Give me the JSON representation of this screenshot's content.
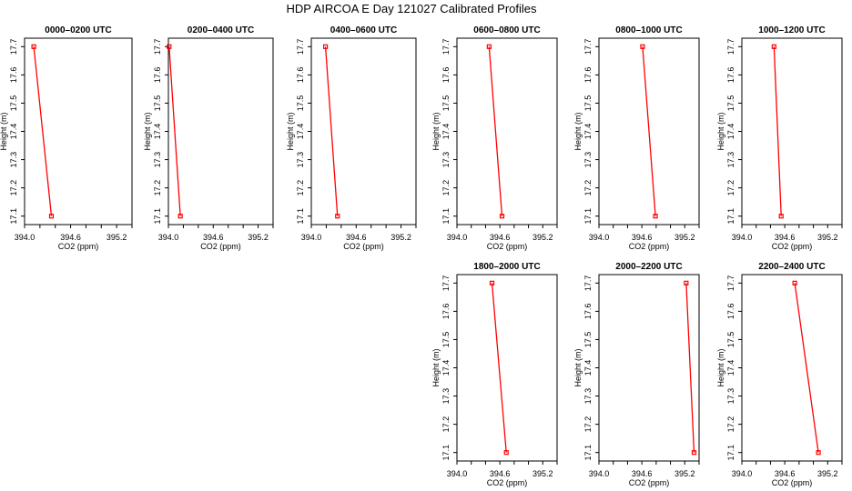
{
  "figure": {
    "title": "HDP AIRCOA E  Day 121027  Calibrated Profiles"
  },
  "chart_data": [
    {
      "type": "line",
      "title": "0000–0200 UTC",
      "xlabel": "CO2 (ppm)",
      "ylabel": "Height (m)",
      "xlim": [
        394.0,
        395.4
      ],
      "ylim": [
        17.07,
        17.73
      ],
      "xticks": [
        "394.0",
        "394.6",
        "395.2"
      ],
      "yticks": [
        "17.1",
        "17.2",
        "17.3",
        "17.4",
        "17.5",
        "17.6",
        "17.7"
      ],
      "series": [
        {
          "color": "#ff0000",
          "x": [
            394.35,
            394.12
          ],
          "y": [
            17.1,
            17.7
          ]
        }
      ]
    },
    {
      "type": "line",
      "title": "0200–0400 UTC",
      "xlabel": "CO2 (ppm)",
      "ylabel": "Height (m)",
      "xlim": [
        394.0,
        395.4
      ],
      "ylim": [
        17.07,
        17.73
      ],
      "xticks": [
        "394.0",
        "394.6",
        "395.2"
      ],
      "yticks": [
        "17.1",
        "17.2",
        "17.3",
        "17.4",
        "17.5",
        "17.6",
        "17.7"
      ],
      "series": [
        {
          "color": "#ff0000",
          "x": [
            394.16,
            394.01
          ],
          "y": [
            17.1,
            17.7
          ]
        }
      ]
    },
    {
      "type": "line",
      "title": "0400–0600 UTC",
      "xlabel": "CO2 (ppm)",
      "ylabel": "Height (m)",
      "xlim": [
        394.0,
        395.4
      ],
      "ylim": [
        17.07,
        17.73
      ],
      "xticks": [
        "394.0",
        "394.6",
        "395.2"
      ],
      "yticks": [
        "17.1",
        "17.2",
        "17.3",
        "17.4",
        "17.5",
        "17.6",
        "17.7"
      ],
      "series": [
        {
          "color": "#ff0000",
          "x": [
            394.35,
            394.19
          ],
          "y": [
            17.1,
            17.7
          ]
        }
      ]
    },
    {
      "type": "line",
      "title": "0600–0800 UTC",
      "xlabel": "CO2 (ppm)",
      "ylabel": "Height (m)",
      "xlim": [
        394.0,
        395.4
      ],
      "ylim": [
        17.07,
        17.73
      ],
      "xticks": [
        "394.0",
        "394.6",
        "395.2"
      ],
      "yticks": [
        "17.1",
        "17.2",
        "17.3",
        "17.4",
        "17.5",
        "17.6",
        "17.7"
      ],
      "series": [
        {
          "color": "#ff0000",
          "x": [
            394.63,
            394.45
          ],
          "y": [
            17.1,
            17.7
          ]
        }
      ]
    },
    {
      "type": "line",
      "title": "0800–1000 UTC",
      "xlabel": "CO2 (ppm)",
      "ylabel": "Height (m)",
      "xlim": [
        394.0,
        395.4
      ],
      "ylim": [
        17.07,
        17.73
      ],
      "xticks": [
        "394.0",
        "394.6",
        "395.2"
      ],
      "yticks": [
        "17.1",
        "17.2",
        "17.3",
        "17.4",
        "17.5",
        "17.6",
        "17.7"
      ],
      "series": [
        {
          "color": "#ff0000",
          "x": [
            394.79,
            394.61
          ],
          "y": [
            17.1,
            17.7
          ]
        }
      ]
    },
    {
      "type": "line",
      "title": "1000–1200 UTC",
      "xlabel": "CO2 (ppm)",
      "ylabel": "Height (m)",
      "xlim": [
        394.0,
        395.4
      ],
      "ylim": [
        17.07,
        17.73
      ],
      "xticks": [
        "394.0",
        "394.6",
        "395.2"
      ],
      "yticks": [
        "17.1",
        "17.2",
        "17.3",
        "17.4",
        "17.5",
        "17.6",
        "17.7"
      ],
      "series": [
        {
          "color": "#ff0000",
          "x": [
            394.55,
            394.45
          ],
          "y": [
            17.1,
            17.7
          ]
        }
      ]
    },
    {
      "type": "line",
      "title": "1800–2000 UTC",
      "xlabel": "CO2 (ppm)",
      "ylabel": "Height (m)",
      "xlim": [
        394.0,
        395.4
      ],
      "ylim": [
        17.07,
        17.73
      ],
      "xticks": [
        "394.0",
        "394.6",
        "395.2"
      ],
      "yticks": [
        "17.1",
        "17.2",
        "17.3",
        "17.4",
        "17.5",
        "17.6",
        "17.7"
      ],
      "series": [
        {
          "color": "#ff0000",
          "x": [
            394.69,
            394.49
          ],
          "y": [
            17.1,
            17.7
          ]
        }
      ]
    },
    {
      "type": "line",
      "title": "2000–2200 UTC",
      "xlabel": "CO2 (ppm)",
      "ylabel": "Height (m)",
      "xlim": [
        394.0,
        395.4
      ],
      "ylim": [
        17.07,
        17.73
      ],
      "xticks": [
        "394.0",
        "394.6",
        "395.2"
      ],
      "yticks": [
        "17.1",
        "17.2",
        "17.3",
        "17.4",
        "17.5",
        "17.6",
        "17.7"
      ],
      "series": [
        {
          "color": "#ff0000",
          "x": [
            395.33,
            395.22
          ],
          "y": [
            17.1,
            17.7
          ]
        }
      ]
    },
    {
      "type": "line",
      "title": "2200–2400 UTC",
      "xlabel": "CO2 (ppm)",
      "ylabel": "Height (m)",
      "xlim": [
        394.0,
        395.4
      ],
      "ylim": [
        17.07,
        17.73
      ],
      "xticks": [
        "394.0",
        "394.6",
        "395.2"
      ],
      "yticks": [
        "17.1",
        "17.2",
        "17.3",
        "17.4",
        "17.5",
        "17.6",
        "17.7"
      ],
      "series": [
        {
          "color": "#ff0000",
          "x": [
            395.07,
            394.74
          ],
          "y": [
            17.1,
            17.7
          ]
        }
      ]
    }
  ]
}
